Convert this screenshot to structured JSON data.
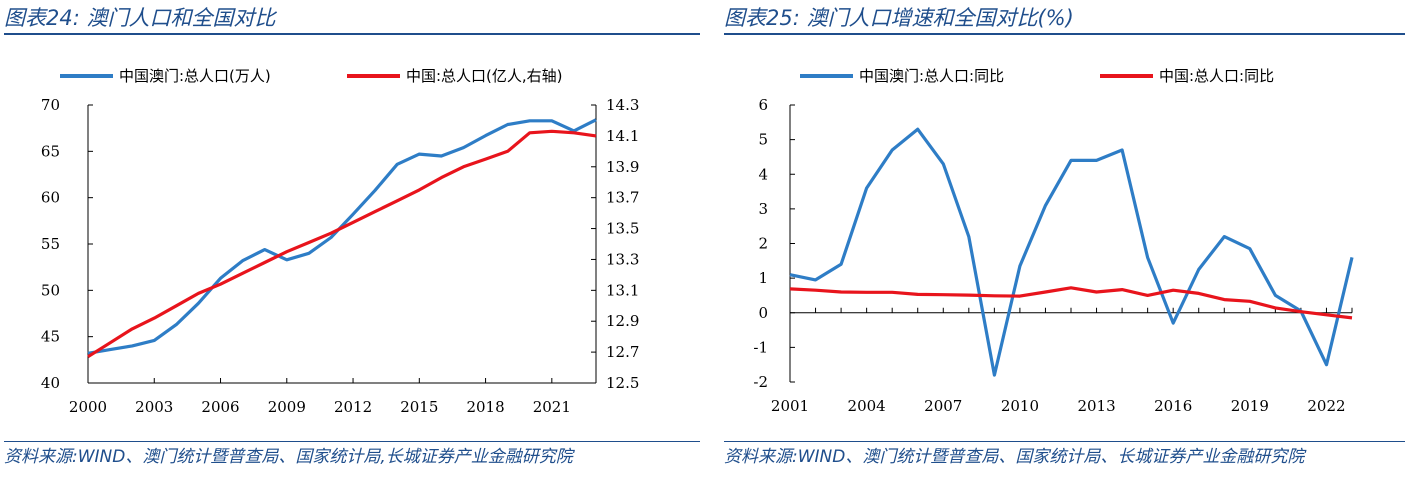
{
  "left": {
    "title": "图表24:  澳门人口和全国对比",
    "source": "资料来源:WIND、澳门统计暨普查局、国家统计局,长城证券产业金融研究院"
  },
  "right": {
    "title": "图表25:  澳门人口增速和全国对比(%)",
    "source": "资料来源:WIND、澳门统计暨普查局、国家统计局、长城证券产业金融研究院"
  },
  "colors": {
    "blue": "#2e7dc6",
    "red": "#e8141c",
    "accent": "#1f4e8c"
  },
  "chart_data": [
    {
      "type": "line",
      "title": "",
      "xlabel": "",
      "ylabel": "",
      "x": [
        2000,
        2001,
        2002,
        2003,
        2004,
        2005,
        2006,
        2007,
        2008,
        2009,
        2010,
        2011,
        2012,
        2013,
        2014,
        2015,
        2016,
        2017,
        2018,
        2019,
        2020,
        2021,
        2022,
        2023
      ],
      "x_ticks": [
        "2000",
        "2003",
        "2006",
        "2009",
        "2012",
        "2015",
        "2018",
        "2021"
      ],
      "ylim": [
        40,
        70
      ],
      "y_ticks": [
        "70",
        "65",
        "60",
        "55",
        "50",
        "45",
        "40"
      ],
      "y2lim": [
        12.5,
        14.3
      ],
      "y2_ticks": [
        "14.3",
        "14.1",
        "13.9",
        "13.7",
        "13.5",
        "13.3",
        "13.1",
        "12.9",
        "12.7",
        "12.5"
      ],
      "legend_position": "top",
      "series": [
        {
          "name": "中国澳门:总人口(万人)",
          "axis": "left",
          "color": "#2e7dc6",
          "values": [
            43.2,
            43.6,
            44.0,
            44.6,
            46.3,
            48.6,
            51.3,
            53.2,
            54.4,
            53.3,
            54.0,
            55.7,
            58.2,
            60.8,
            63.6,
            64.7,
            64.5,
            65.4,
            66.7,
            67.9,
            68.3,
            68.3,
            67.2,
            68.4
          ]
        },
        {
          "name": "中国:总人口(亿人,右轴)",
          "axis": "right",
          "color": "#e8141c",
          "values": [
            12.67,
            12.76,
            12.85,
            12.92,
            13.0,
            13.08,
            13.14,
            13.21,
            13.28,
            13.35,
            13.41,
            13.47,
            13.54,
            13.61,
            13.68,
            13.75,
            13.83,
            13.9,
            13.95,
            14.0,
            14.12,
            14.13,
            14.12,
            14.1
          ]
        }
      ]
    },
    {
      "type": "line",
      "title": "",
      "xlabel": "",
      "ylabel": "",
      "x": [
        2001,
        2002,
        2003,
        2004,
        2005,
        2006,
        2007,
        2008,
        2009,
        2010,
        2011,
        2012,
        2013,
        2014,
        2015,
        2016,
        2017,
        2018,
        2019,
        2020,
        2021,
        2022,
        2023
      ],
      "x_ticks": [
        "2001",
        "2004",
        "2007",
        "2010",
        "2013",
        "2016",
        "2019",
        "2022"
      ],
      "ylim": [
        -2,
        6
      ],
      "y_ticks": [
        "6",
        "5",
        "4",
        "3",
        "2",
        "1",
        "0",
        "-1",
        "-2"
      ],
      "legend_position": "top",
      "series": [
        {
          "name": "中国澳门:总人口:同比",
          "color": "#2e7dc6",
          "values": [
            1.1,
            0.95,
            1.4,
            3.6,
            4.7,
            5.3,
            4.3,
            2.2,
            -1.8,
            1.35,
            3.1,
            4.4,
            4.4,
            4.7,
            1.6,
            -0.3,
            1.25,
            2.2,
            1.85,
            0.5,
            0.05,
            -1.5,
            1.6
          ]
        },
        {
          "name": "中国:总人口:同比",
          "color": "#e8141c",
          "values": [
            0.69,
            0.65,
            0.6,
            0.59,
            0.59,
            0.53,
            0.52,
            0.51,
            0.49,
            0.48,
            0.6,
            0.72,
            0.6,
            0.67,
            0.5,
            0.65,
            0.56,
            0.38,
            0.33,
            0.14,
            0.03,
            -0.06,
            -0.15
          ]
        }
      ]
    }
  ]
}
